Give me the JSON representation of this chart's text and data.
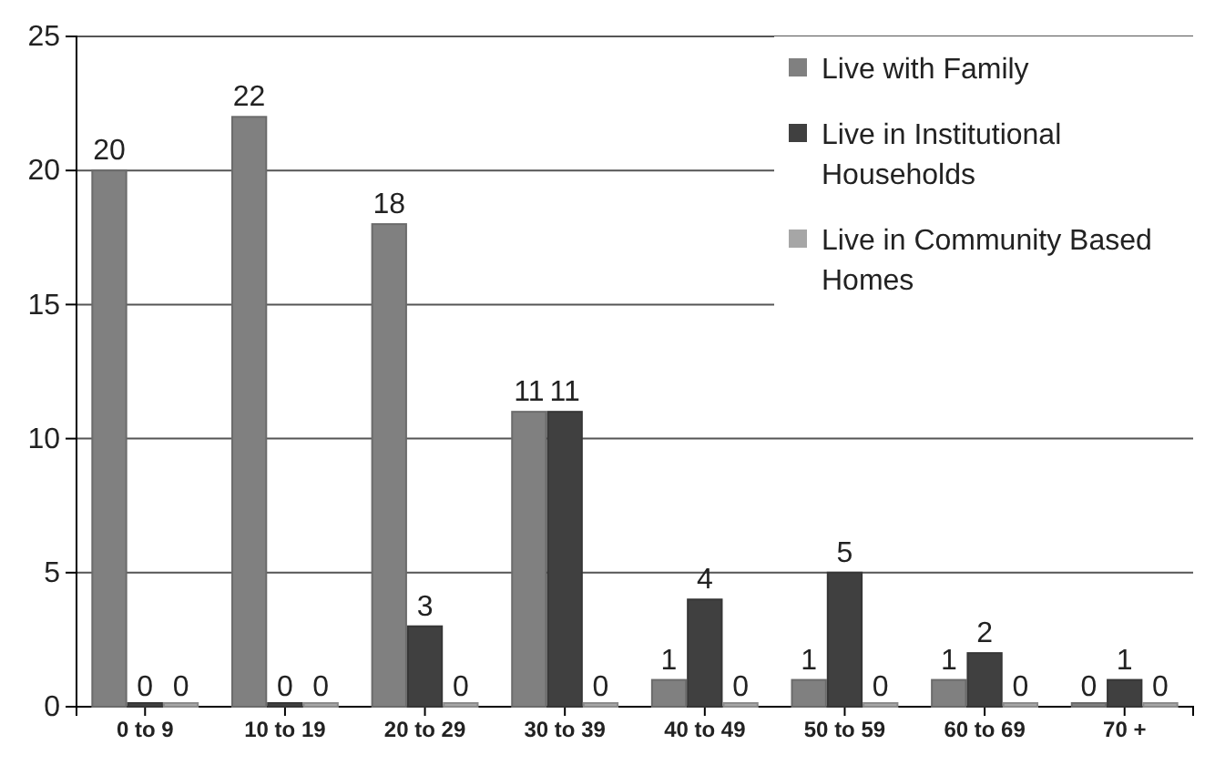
{
  "chart_data": {
    "type": "bar",
    "categories": [
      "0 to 9",
      "10 to 19",
      "20 to 29",
      "30 to 39",
      "40 to 49",
      "50 to 59",
      "60 to 69",
      "70 +"
    ],
    "series": [
      {
        "name": "Live with Family",
        "color": "#808080",
        "values": [
          20,
          22,
          18,
          11,
          1,
          1,
          1,
          0
        ]
      },
      {
        "name": "Live in Institutional Households",
        "color": "#404040",
        "values": [
          0,
          0,
          3,
          11,
          4,
          5,
          2,
          1
        ]
      },
      {
        "name": "Live in Community Based Homes",
        "color": "#a6a6a6",
        "values": [
          0,
          0,
          0,
          0,
          0,
          0,
          0,
          0
        ]
      }
    ],
    "ylim": [
      0,
      25
    ],
    "yticks": [
      0,
      5,
      10,
      15,
      20,
      25
    ],
    "grid": "y",
    "legend": "top right",
    "data_labels": true
  }
}
